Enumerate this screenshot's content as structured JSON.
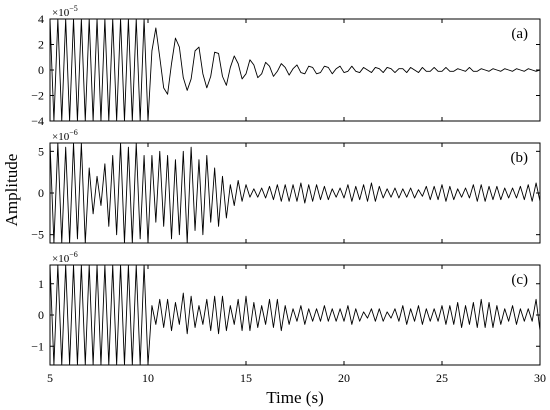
{
  "chart_data": [
    {
      "type": "line",
      "panel_label": "(a)",
      "y_multiplier": "×10",
      "y_exponent": "−5",
      "xlim": [
        5,
        30
      ],
      "ylim": [
        -4,
        4
      ],
      "yticks": [
        -4,
        -2,
        0,
        2,
        4
      ],
      "ytick_labels": [
        "−4",
        "−2",
        "0",
        "2",
        "4"
      ],
      "x": [
        5.0,
        5.2,
        5.4,
        5.6,
        5.8,
        6.0,
        6.2,
        6.4,
        6.6,
        6.8,
        7.0,
        7.2,
        7.4,
        7.6,
        7.8,
        8.0,
        8.2,
        8.4,
        8.6,
        8.8,
        9.0,
        9.2,
        9.4,
        9.6,
        9.8,
        10.0,
        10.2,
        10.4,
        10.6,
        10.8,
        11.0,
        11.2,
        11.4,
        11.6,
        11.8,
        12.0,
        12.2,
        12.4,
        12.6,
        12.8,
        13.0,
        13.2,
        13.4,
        13.6,
        13.8,
        14.0,
        14.2,
        14.4,
        14.6,
        14.8,
        15.0,
        15.2,
        15.4,
        15.6,
        15.8,
        16.0,
        16.2,
        16.4,
        16.6,
        16.8,
        17.0,
        17.2,
        17.4,
        17.6,
        17.8,
        18.0,
        18.2,
        18.4,
        18.6,
        18.8,
        19.0,
        19.2,
        19.4,
        19.6,
        19.8,
        20.0,
        20.2,
        20.4,
        20.6,
        20.8,
        21.0,
        21.2,
        21.4,
        21.6,
        21.8,
        22.0,
        22.2,
        22.4,
        22.6,
        22.8,
        23.0,
        23.2,
        23.4,
        23.6,
        23.8,
        24.0,
        24.2,
        24.4,
        24.6,
        24.8,
        25.0,
        25.2,
        25.4,
        25.6,
        25.8,
        26.0,
        26.2,
        26.4,
        26.6,
        26.8,
        27.0,
        27.2,
        27.4,
        27.6,
        27.8,
        28.0,
        28.2,
        28.4,
        28.6,
        28.8,
        29.0,
        29.2,
        29.4,
        29.6,
        29.8,
        30.0
      ],
      "y": [
        4.0,
        -4.0,
        4.0,
        -4.0,
        4.0,
        -4.0,
        4.0,
        -4.0,
        4.0,
        -4.0,
        4.0,
        -4.0,
        4.0,
        -4.0,
        4.0,
        -4.0,
        4.0,
        -4.0,
        4.0,
        -4.0,
        4.0,
        -4.0,
        4.0,
        -4.0,
        4.0,
        -4.0,
        1.5,
        3.3,
        1.0,
        -1.4,
        -1.9,
        0.5,
        2.5,
        1.8,
        -0.6,
        -1.6,
        -0.7,
        1.5,
        1.8,
        -0.3,
        -1.4,
        -0.5,
        1.4,
        1.3,
        -0.5,
        -1.2,
        0.2,
        1.1,
        0.5,
        -0.7,
        -0.3,
        0.8,
        0.4,
        -0.6,
        -0.3,
        0.6,
        0.3,
        -0.5,
        -0.1,
        0.5,
        0.2,
        -0.4,
        0.1,
        0.4,
        -0.2,
        -0.3,
        0.3,
        0.2,
        -0.3,
        -0.2,
        0.3,
        0.2,
        -0.3,
        0.1,
        0.3,
        -0.2,
        -0.1,
        0.3,
        -0.1,
        -0.2,
        0.2,
        0.0,
        -0.2,
        0.2,
        0.1,
        -0.2,
        0.2,
        0.1,
        -0.2,
        0.1,
        0.1,
        -0.2,
        0.2,
        0.0,
        -0.2,
        0.2,
        -0.1,
        -0.1,
        0.2,
        -0.1,
        -0.1,
        0.2,
        -0.1,
        -0.1,
        0.1,
        0.0,
        -0.1,
        0.2,
        -0.1,
        -0.1,
        0.1,
        0.0,
        -0.1,
        0.1,
        0.0,
        -0.1,
        0.1,
        0.0,
        -0.1,
        0.1,
        0.0,
        -0.1,
        0.1,
        0.0,
        -0.1,
        0.0
      ]
    },
    {
      "type": "line",
      "panel_label": "(b)",
      "y_multiplier": "×10",
      "y_exponent": "−6",
      "xlim": [
        5,
        30
      ],
      "ylim": [
        -6,
        6
      ],
      "yticks": [
        -5,
        0,
        5
      ],
      "ytick_labels": [
        "−5",
        "0",
        "5"
      ],
      "x": [
        5.0,
        5.2,
        5.4,
        5.6,
        5.8,
        6.0,
        6.2,
        6.4,
        6.6,
        6.8,
        7.0,
        7.2,
        7.4,
        7.6,
        7.8,
        8.0,
        8.2,
        8.4,
        8.6,
        8.8,
        9.0,
        9.2,
        9.4,
        9.6,
        9.8,
        10.0,
        10.2,
        10.4,
        10.6,
        10.8,
        11.0,
        11.2,
        11.4,
        11.6,
        11.8,
        12.0,
        12.2,
        12.4,
        12.6,
        12.8,
        13.0,
        13.2,
        13.4,
        13.6,
        13.8,
        14.0,
        14.2,
        14.4,
        14.6,
        14.8,
        15.0,
        15.2,
        15.4,
        15.6,
        15.8,
        16.0,
        16.2,
        16.4,
        16.6,
        16.8,
        17.0,
        17.2,
        17.4,
        17.6,
        17.8,
        18.0,
        18.2,
        18.4,
        18.6,
        18.8,
        19.0,
        19.2,
        19.4,
        19.6,
        19.8,
        20.0,
        20.2,
        20.4,
        20.6,
        20.8,
        21.0,
        21.2,
        21.4,
        21.6,
        21.8,
        22.0,
        22.2,
        22.4,
        22.6,
        22.8,
        23.0,
        23.2,
        23.4,
        23.6,
        23.8,
        24.0,
        24.2,
        24.4,
        24.6,
        24.8,
        25.0,
        25.2,
        25.4,
        25.6,
        25.8,
        26.0,
        26.2,
        26.4,
        26.6,
        26.8,
        27.0,
        27.2,
        27.4,
        27.6,
        27.8,
        28.0,
        28.2,
        28.4,
        28.6,
        28.8,
        29.0,
        29.2,
        29.4,
        29.6,
        29.8,
        30.0
      ],
      "y": [
        6.0,
        -6.0,
        6.0,
        -6.0,
        5.5,
        -6.0,
        6.0,
        -5.5,
        6.0,
        -6.0,
        3.0,
        -2.5,
        2.0,
        -1.5,
        3.5,
        -4.0,
        4.5,
        -5.0,
        6.0,
        -6.0,
        5.5,
        -6.0,
        6.0,
        -5.5,
        4.5,
        -6.0,
        4.5,
        -3.5,
        5.0,
        -4.0,
        4.5,
        -5.5,
        4.0,
        -5.0,
        5.0,
        -6.0,
        5.5,
        -4.5,
        4.0,
        -5.0,
        4.5,
        -3.5,
        3.0,
        -4.0,
        2.0,
        -3.0,
        1.0,
        -1.5,
        1.5,
        -1.0,
        1.0,
        -0.5,
        0.5,
        -0.5,
        0.6,
        -0.6,
        0.8,
        -0.8,
        1.0,
        -1.0,
        1.0,
        -1.0,
        1.0,
        -1.0,
        1.2,
        -1.2,
        1.0,
        -1.0,
        1.0,
        -0.8,
        0.8,
        -0.8,
        0.5,
        -0.5,
        0.6,
        -0.6,
        1.0,
        -1.0,
        0.8,
        -0.8,
        1.0,
        -1.0,
        1.2,
        -1.0,
        0.8,
        -0.6,
        0.5,
        -0.5,
        0.6,
        -0.6,
        0.5,
        -0.5,
        0.6,
        -0.6,
        0.4,
        -0.4,
        0.8,
        -0.8,
        0.8,
        -0.8,
        1.0,
        -1.0,
        0.8,
        -0.8,
        0.5,
        -0.5,
        0.6,
        -0.6,
        1.0,
        -1.0,
        1.0,
        -1.0,
        0.8,
        -0.8,
        0.8,
        -0.8,
        0.6,
        -0.6,
        0.6,
        -0.6,
        0.8,
        -0.8,
        1.0,
        -1.0,
        1.2,
        -1.0
      ]
    },
    {
      "type": "line",
      "panel_label": "(c)",
      "y_multiplier": "×10",
      "y_exponent": "−6",
      "xlim": [
        5,
        30
      ],
      "ylim": [
        -1.6,
        1.6
      ],
      "yticks": [
        -1,
        0,
        1
      ],
      "ytick_labels": [
        "−1",
        "0",
        "1"
      ],
      "x": [
        5.0,
        5.2,
        5.4,
        5.6,
        5.8,
        6.0,
        6.2,
        6.4,
        6.6,
        6.8,
        7.0,
        7.2,
        7.4,
        7.6,
        7.8,
        8.0,
        8.2,
        8.4,
        8.6,
        8.8,
        9.0,
        9.2,
        9.4,
        9.6,
        9.8,
        10.0,
        10.2,
        10.4,
        10.6,
        10.8,
        11.0,
        11.2,
        11.4,
        11.6,
        11.8,
        12.0,
        12.2,
        12.4,
        12.6,
        12.8,
        13.0,
        13.2,
        13.4,
        13.6,
        13.8,
        14.0,
        14.2,
        14.4,
        14.6,
        14.8,
        15.0,
        15.2,
        15.4,
        15.6,
        15.8,
        16.0,
        16.2,
        16.4,
        16.6,
        16.8,
        17.0,
        17.2,
        17.4,
        17.6,
        17.8,
        18.0,
        18.2,
        18.4,
        18.6,
        18.8,
        19.0,
        19.2,
        19.4,
        19.6,
        19.8,
        20.0,
        20.2,
        20.4,
        20.6,
        20.8,
        21.0,
        21.2,
        21.4,
        21.6,
        21.8,
        22.0,
        22.2,
        22.4,
        22.6,
        22.8,
        23.0,
        23.2,
        23.4,
        23.6,
        23.8,
        24.0,
        24.2,
        24.4,
        24.6,
        24.8,
        25.0,
        25.2,
        25.4,
        25.6,
        25.8,
        26.0,
        26.2,
        26.4,
        26.6,
        26.8,
        27.0,
        27.2,
        27.4,
        27.6,
        27.8,
        28.0,
        28.2,
        28.4,
        28.6,
        28.8,
        29.0,
        29.2,
        29.4,
        29.6,
        29.8,
        30.0
      ],
      "y": [
        1.6,
        -1.6,
        1.6,
        -1.6,
        1.6,
        -1.6,
        1.6,
        -1.6,
        1.6,
        -1.6,
        1.6,
        -1.6,
        1.6,
        -1.6,
        1.6,
        -1.6,
        1.6,
        -1.6,
        1.6,
        -1.6,
        1.6,
        -1.6,
        1.6,
        -1.6,
        1.6,
        -1.6,
        0.3,
        -0.3,
        0.5,
        -0.4,
        0.5,
        -0.5,
        0.4,
        -0.3,
        0.7,
        -0.6,
        0.6,
        -0.4,
        0.3,
        -0.3,
        0.5,
        -0.5,
        0.6,
        -0.6,
        0.6,
        -0.5,
        0.3,
        -0.3,
        0.5,
        -0.5,
        0.6,
        -0.5,
        0.4,
        -0.4,
        0.3,
        -0.3,
        0.5,
        -0.4,
        0.5,
        -0.5,
        0.3,
        -0.3,
        0.2,
        -0.2,
        0.3,
        -0.3,
        0.2,
        -0.2,
        0.2,
        -0.2,
        0.3,
        -0.2,
        0.2,
        -0.2,
        0.2,
        -0.2,
        0.3,
        -0.3,
        0.2,
        -0.2,
        0.1,
        -0.1,
        0.2,
        -0.2,
        0.2,
        -0.2,
        0.1,
        -0.1,
        0.2,
        -0.2,
        0.3,
        -0.3,
        0.2,
        -0.2,
        0.3,
        -0.3,
        0.2,
        -0.2,
        0.2,
        -0.2,
        0.3,
        -0.3,
        0.3,
        -0.3,
        0.4,
        -0.4,
        0.3,
        -0.3,
        0.4,
        -0.4,
        0.5,
        -0.4,
        0.4,
        -0.4,
        0.3,
        -0.3,
        0.2,
        -0.2,
        0.3,
        -0.3,
        0.2,
        -0.2,
        0.2,
        -0.2,
        0.5,
        -0.5
      ]
    }
  ],
  "xlabel": "Time (s)",
  "ylabel": "Amplitude",
  "xticks": [
    5,
    10,
    15,
    20,
    25,
    30
  ],
  "xtick_labels": [
    "5",
    "10",
    "15",
    "20",
    "25",
    "30"
  ]
}
